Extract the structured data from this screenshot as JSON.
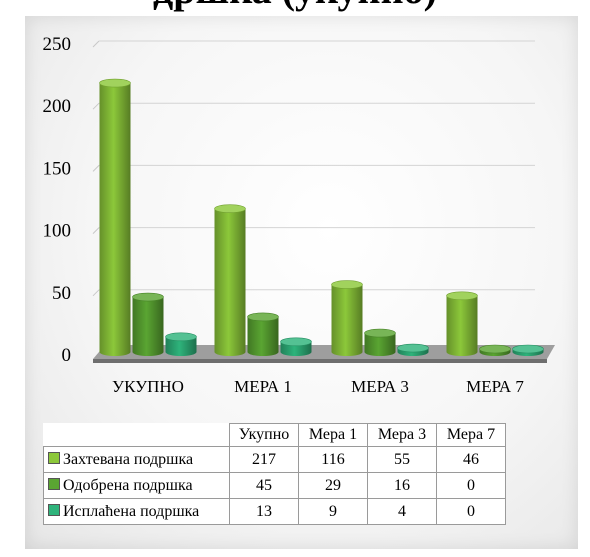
{
  "page_title": "дршка (укупно)",
  "chart_data": {
    "type": "bar",
    "categories": [
      "УКУПНО",
      "МЕРА 1",
      "МЕРА 3",
      "МЕРА 7"
    ],
    "series": [
      {
        "name": "Захтевана подршка",
        "values": [
          217,
          116,
          55,
          46
        ],
        "color": "#8cc83a"
      },
      {
        "name": "Одобрена подршка",
        "values": [
          45,
          29,
          16,
          0
        ],
        "color": "#5aa532"
      },
      {
        "name": "Исплаћена подршка",
        "values": [
          13,
          9,
          4,
          0
        ],
        "color": "#2eb37b"
      }
    ],
    "yticks": [
      "0",
      "50",
      "100",
      "150",
      "200",
      "250"
    ],
    "ylim": [
      0,
      250
    ],
    "grid": true,
    "legend": "table-below",
    "table_headers": [
      "Укупно",
      "Мера 1",
      "Мера 3",
      "Мера 7"
    ]
  }
}
